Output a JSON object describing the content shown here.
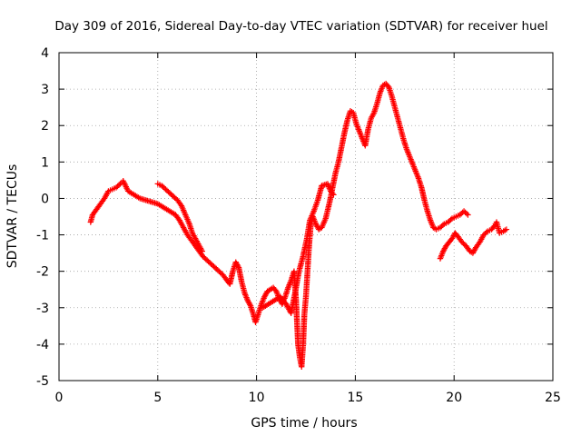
{
  "chart_data": {
    "type": "scatter",
    "title": "Day 309 of 2016, Sidereal Day-to-day VTEC variation (SDTVAR) for receiver huel",
    "xlabel": "GPS time / hours",
    "ylabel": "SDTVAR / TECUs",
    "xlim": [
      0,
      25
    ],
    "ylim": [
      -5,
      4
    ],
    "xticks": [
      0,
      5,
      10,
      15,
      20,
      25
    ],
    "yticks": [
      -5,
      -4,
      -3,
      -2,
      -1,
      0,
      1,
      2,
      3,
      4
    ],
    "grid": true,
    "marker": "+",
    "series": [
      {
        "name": "SDTVAR",
        "color": "#ff0000",
        "points": [
          [
            1.6,
            -0.65
          ],
          [
            1.7,
            -0.45
          ],
          [
            1.9,
            -0.3
          ],
          [
            2.1,
            -0.15
          ],
          [
            2.3,
            0.0
          ],
          [
            2.5,
            0.2
          ],
          [
            2.7,
            0.25
          ],
          [
            2.9,
            0.3
          ],
          [
            3.1,
            0.4
          ],
          [
            3.25,
            0.48
          ],
          [
            3.5,
            0.2
          ],
          [
            3.8,
            0.1
          ],
          [
            4.1,
            0.0
          ],
          [
            4.4,
            -0.05
          ],
          [
            4.7,
            -0.1
          ],
          [
            5.0,
            -0.15
          ],
          [
            5.3,
            -0.25
          ],
          [
            5.6,
            -0.35
          ],
          [
            5.9,
            -0.45
          ],
          [
            6.1,
            -0.6
          ],
          [
            6.3,
            -0.8
          ],
          [
            6.5,
            -1.0
          ],
          [
            6.7,
            -1.15
          ],
          [
            6.9,
            -1.3
          ],
          [
            7.1,
            -1.45
          ],
          [
            7.3,
            -1.6
          ],
          [
            7.5,
            -1.7
          ],
          [
            7.7,
            -1.8
          ],
          [
            7.9,
            -1.9
          ],
          [
            8.1,
            -2.0
          ],
          [
            8.3,
            -2.1
          ],
          [
            8.5,
            -2.25
          ],
          [
            8.65,
            -2.35
          ],
          [
            8.8,
            -2.0
          ],
          [
            8.95,
            -1.75
          ],
          [
            9.1,
            -1.9
          ],
          [
            9.25,
            -2.3
          ],
          [
            9.4,
            -2.6
          ],
          [
            9.55,
            -2.8
          ],
          [
            9.7,
            -2.95
          ],
          [
            9.85,
            -3.2
          ],
          [
            9.95,
            -3.4
          ],
          [
            10.1,
            -3.15
          ],
          [
            10.25,
            -2.9
          ],
          [
            10.4,
            -2.7
          ],
          [
            10.55,
            -2.55
          ],
          [
            10.7,
            -2.5
          ],
          [
            10.85,
            -2.45
          ],
          [
            11.0,
            -2.55
          ],
          [
            11.15,
            -2.75
          ],
          [
            11.3,
            -2.9
          ],
          [
            11.45,
            -2.7
          ],
          [
            11.6,
            -2.45
          ],
          [
            11.75,
            -2.25
          ],
          [
            11.9,
            -2.0
          ],
          [
            12.0,
            -2.8
          ],
          [
            12.1,
            -4.0
          ],
          [
            12.2,
            -4.4
          ],
          [
            12.28,
            -4.62
          ],
          [
            12.36,
            -4.0
          ],
          [
            12.42,
            -3.2
          ],
          [
            12.5,
            -2.7
          ],
          [
            12.58,
            -2.0
          ],
          [
            12.66,
            -1.3
          ],
          [
            12.75,
            -0.7
          ],
          [
            12.85,
            -0.5
          ],
          [
            13.0,
            -0.7
          ],
          [
            13.15,
            -0.85
          ],
          [
            13.3,
            -0.8
          ],
          [
            13.5,
            -0.55
          ],
          [
            13.7,
            -0.1
          ],
          [
            13.85,
            0.3
          ],
          [
            14.0,
            0.7
          ],
          [
            14.15,
            1.0
          ],
          [
            14.3,
            1.4
          ],
          [
            14.45,
            1.8
          ],
          [
            14.6,
            2.15
          ],
          [
            14.75,
            2.4
          ],
          [
            14.9,
            2.35
          ],
          [
            15.05,
            2.05
          ],
          [
            15.2,
            1.85
          ],
          [
            15.35,
            1.65
          ],
          [
            15.5,
            1.45
          ],
          [
            15.65,
            1.9
          ],
          [
            15.8,
            2.2
          ],
          [
            15.95,
            2.35
          ],
          [
            16.1,
            2.6
          ],
          [
            16.25,
            2.9
          ],
          [
            16.4,
            3.1
          ],
          [
            16.55,
            3.15
          ],
          [
            16.7,
            3.05
          ],
          [
            16.85,
            2.8
          ],
          [
            17.0,
            2.5
          ],
          [
            17.15,
            2.2
          ],
          [
            17.3,
            1.9
          ],
          [
            17.45,
            1.6
          ],
          [
            17.6,
            1.35
          ],
          [
            17.75,
            1.15
          ],
          [
            17.9,
            0.95
          ],
          [
            18.05,
            0.75
          ],
          [
            18.2,
            0.55
          ],
          [
            18.35,
            0.3
          ],
          [
            18.5,
            -0.05
          ],
          [
            18.65,
            -0.35
          ],
          [
            18.8,
            -0.6
          ],
          [
            18.95,
            -0.8
          ],
          [
            19.1,
            -0.85
          ],
          [
            19.3,
            -0.8
          ],
          [
            19.5,
            -0.7
          ],
          [
            19.7,
            -0.65
          ],
          [
            19.9,
            -0.55
          ],
          [
            20.1,
            -0.5
          ],
          [
            20.3,
            -0.45
          ],
          [
            20.5,
            -0.35
          ],
          [
            20.7,
            -0.45
          ],
          [
            5.0,
            0.4
          ],
          [
            5.2,
            0.35
          ],
          [
            5.4,
            0.25
          ],
          [
            5.6,
            0.15
          ],
          [
            5.8,
            0.05
          ],
          [
            6.0,
            -0.05
          ],
          [
            6.2,
            -0.2
          ],
          [
            6.4,
            -0.45
          ],
          [
            6.6,
            -0.7
          ],
          [
            6.75,
            -0.95
          ],
          [
            6.9,
            -1.1
          ],
          [
            7.05,
            -1.25
          ],
          [
            7.25,
            -1.45
          ],
          [
            10.3,
            -3.0
          ],
          [
            10.6,
            -2.9
          ],
          [
            10.9,
            -2.8
          ],
          [
            11.2,
            -2.7
          ],
          [
            11.5,
            -2.9
          ],
          [
            11.75,
            -3.15
          ],
          [
            11.95,
            -2.6
          ],
          [
            12.15,
            -2.0
          ],
          [
            12.35,
            -1.6
          ],
          [
            12.55,
            -1.1
          ],
          [
            12.7,
            -0.6
          ],
          [
            12.9,
            -0.35
          ],
          [
            13.1,
            -0.05
          ],
          [
            13.3,
            0.35
          ],
          [
            13.6,
            0.4
          ],
          [
            13.75,
            0.2
          ],
          [
            13.9,
            0.1
          ],
          [
            19.3,
            -1.65
          ],
          [
            19.45,
            -1.45
          ],
          [
            19.6,
            -1.3
          ],
          [
            19.75,
            -1.2
          ],
          [
            19.9,
            -1.1
          ],
          [
            20.05,
            -0.95
          ],
          [
            20.2,
            -1.05
          ],
          [
            20.4,
            -1.2
          ],
          [
            20.6,
            -1.3
          ],
          [
            20.8,
            -1.45
          ],
          [
            20.95,
            -1.5
          ],
          [
            21.1,
            -1.35
          ],
          [
            21.3,
            -1.2
          ],
          [
            21.5,
            -1.0
          ],
          [
            21.7,
            -0.9
          ],
          [
            21.9,
            -0.85
          ],
          [
            22.05,
            -0.75
          ],
          [
            22.15,
            -0.65
          ],
          [
            22.3,
            -0.95
          ],
          [
            22.5,
            -0.9
          ],
          [
            22.65,
            -0.85
          ]
        ]
      }
    ]
  }
}
